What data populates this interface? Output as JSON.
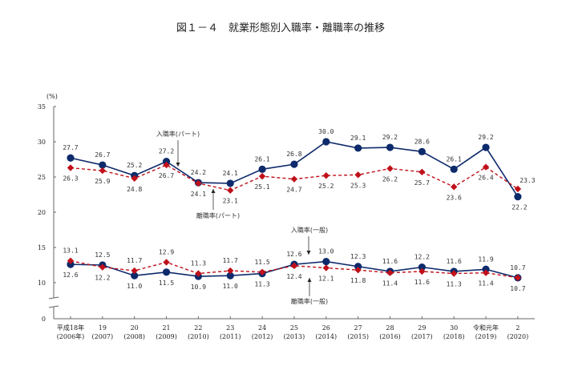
{
  "chart_data": {
    "type": "line",
    "title": "図１－４　就業形態別入職率・離職率の推移",
    "ylabel": "(%)",
    "xlabel": "",
    "ylim": [
      0,
      35
    ],
    "yticks": [
      0,
      10,
      15,
      20,
      25,
      30,
      35
    ],
    "axis_break": "between 0 and 10",
    "grid": false,
    "categories": [
      {
        "line1": "平成18年",
        "line2": "(2006年)"
      },
      {
        "line1": "19",
        "line2": "(2007)"
      },
      {
        "line1": "20",
        "line2": "(2008)"
      },
      {
        "line1": "21",
        "line2": "(2009)"
      },
      {
        "line1": "22",
        "line2": "(2010)"
      },
      {
        "line1": "23",
        "line2": "(2011)"
      },
      {
        "line1": "24",
        "line2": "(2012)"
      },
      {
        "line1": "25",
        "line2": "(2013)"
      },
      {
        "line1": "26",
        "line2": "(2014)"
      },
      {
        "line1": "27",
        "line2": "(2015)"
      },
      {
        "line1": "28",
        "line2": "(2016)"
      },
      {
        "line1": "29",
        "line2": "(2017)"
      },
      {
        "line1": "30",
        "line2": "(2018)"
      },
      {
        "line1": "令和元年",
        "line2": "(2019)"
      },
      {
        "line1": "2",
        "line2": "(2020)"
      }
    ],
    "series": [
      {
        "name": "入職率(パート)",
        "style": "solid",
        "marker": "circle",
        "color": "#0d2a6b",
        "values": [
          27.7,
          26.7,
          25.2,
          27.2,
          24.2,
          24.1,
          26.1,
          26.8,
          30.0,
          29.1,
          29.2,
          28.6,
          26.1,
          29.2,
          22.2
        ],
        "label_pos": [
          "above",
          "above",
          "above",
          "above",
          "above",
          "above",
          "above",
          "above",
          "above",
          "above",
          "above",
          "above",
          "above",
          "above",
          "below"
        ]
      },
      {
        "name": "離職率(パート)",
        "style": "dashed",
        "marker": "diamond",
        "color": "#c0101a",
        "values": [
          26.3,
          25.9,
          24.8,
          26.7,
          24.1,
          23.1,
          25.1,
          24.7,
          25.2,
          25.3,
          26.2,
          25.7,
          23.6,
          26.4,
          23.3
        ],
        "label_pos": [
          "below",
          "below",
          "below",
          "below",
          "below",
          "below",
          "below",
          "below",
          "below",
          "below",
          "below",
          "below",
          "below",
          "below",
          "above"
        ]
      },
      {
        "name": "入職率(一般)",
        "style": "solid",
        "marker": "circle",
        "color": "#0d2a6b",
        "values": [
          12.6,
          12.5,
          11.0,
          11.5,
          10.9,
          11.0,
          11.3,
          12.6,
          13.0,
          12.3,
          11.6,
          12.2,
          11.6,
          11.9,
          10.7
        ],
        "label_pos": [
          "below",
          "above",
          "below",
          "below",
          "below",
          "below",
          "below",
          "above",
          "above",
          "above",
          "above",
          "above",
          "above",
          "above",
          "above"
        ]
      },
      {
        "name": "離職率(一般)",
        "style": "dashed",
        "marker": "diamond",
        "color": "#c0101a",
        "values": [
          13.1,
          12.2,
          11.7,
          12.9,
          11.3,
          11.7,
          11.5,
          12.4,
          12.1,
          11.8,
          11.4,
          11.6,
          11.3,
          11.4,
          10.7
        ],
        "label_pos": [
          "above",
          "below",
          "above",
          "above",
          "above",
          "above",
          "above",
          "below",
          "below",
          "below",
          "below",
          "below",
          "below",
          "below",
          "below"
        ]
      }
    ],
    "annotations": [
      {
        "text": "入職率(パート)",
        "series": 0,
        "point": 4,
        "arrow": "down"
      },
      {
        "text": "離職率(パート)",
        "series": 1,
        "point": 4,
        "arrow": "up"
      },
      {
        "text": "入職率(一般)",
        "series": 2,
        "point": 7,
        "arrow": "down"
      },
      {
        "text": "離職率(一般)",
        "series": 3,
        "point": 7,
        "arrow": "up"
      }
    ]
  }
}
